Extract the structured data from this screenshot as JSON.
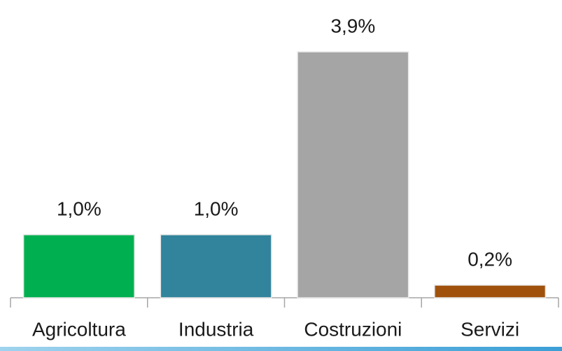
{
  "chart_data": {
    "type": "bar",
    "categories": [
      "Agricoltura",
      "Industria",
      "Costruzioni",
      "Servizi"
    ],
    "values": [
      1.0,
      1.0,
      3.9,
      0.2
    ],
    "value_labels": [
      "1,0%",
      "1,0%",
      "3,9%",
      "0,2%"
    ],
    "colors": [
      "#00b050",
      "#31849b",
      "#a5a5a5",
      "#a0520c"
    ]
  }
}
